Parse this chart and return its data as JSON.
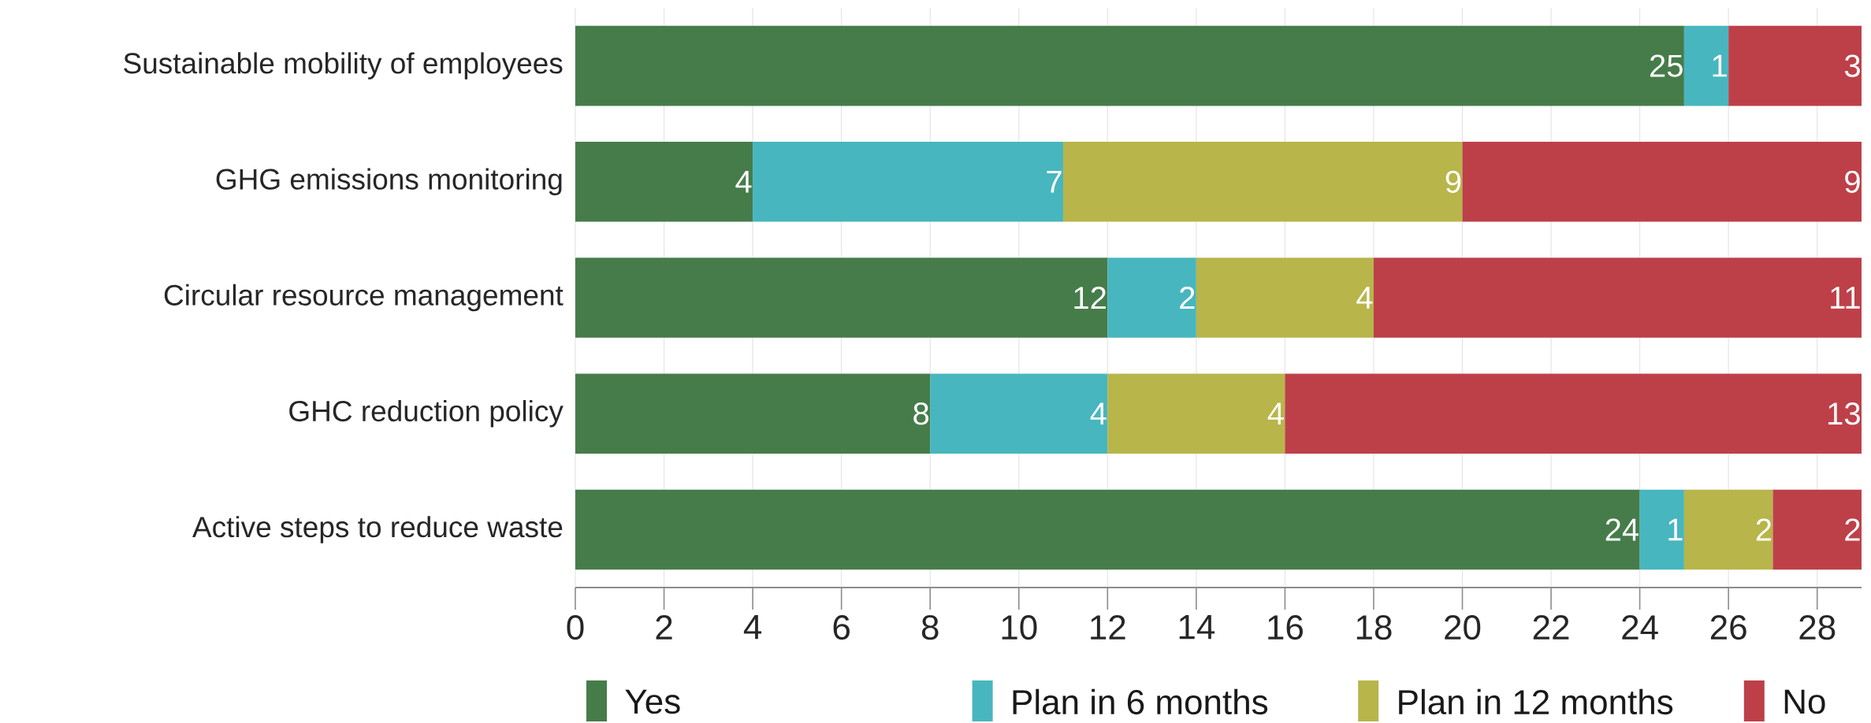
{
  "chart_data": {
    "type": "bar",
    "orientation": "horizontal",
    "stacked": true,
    "data_labels": true,
    "grid": "x",
    "legend": "bottom",
    "categories": [
      "Sustainable mobility of employees",
      "GHG emissions monitoring",
      "Circular resource management",
      "GHC reduction policy",
      "Active steps to reduce waste"
    ],
    "series": [
      {
        "name": "Yes",
        "color": "#467c4a",
        "values": [
          25,
          4,
          12,
          8,
          24
        ]
      },
      {
        "name": "Plan in 6 months",
        "color": "#47b6bf",
        "values": [
          1,
          7,
          2,
          4,
          1
        ]
      },
      {
        "name": "Plan in 12 months",
        "color": "#b8b54a",
        "values": [
          null,
          9,
          4,
          4,
          2
        ]
      },
      {
        "name": "No",
        "color": "#bd4049",
        "values": [
          3,
          9,
          11,
          13,
          2
        ]
      }
    ],
    "xlim": [
      0,
      29
    ],
    "xticks": [
      0,
      2,
      4,
      6,
      8,
      10,
      12,
      14,
      16,
      18,
      20,
      22,
      24,
      26,
      28
    ]
  }
}
